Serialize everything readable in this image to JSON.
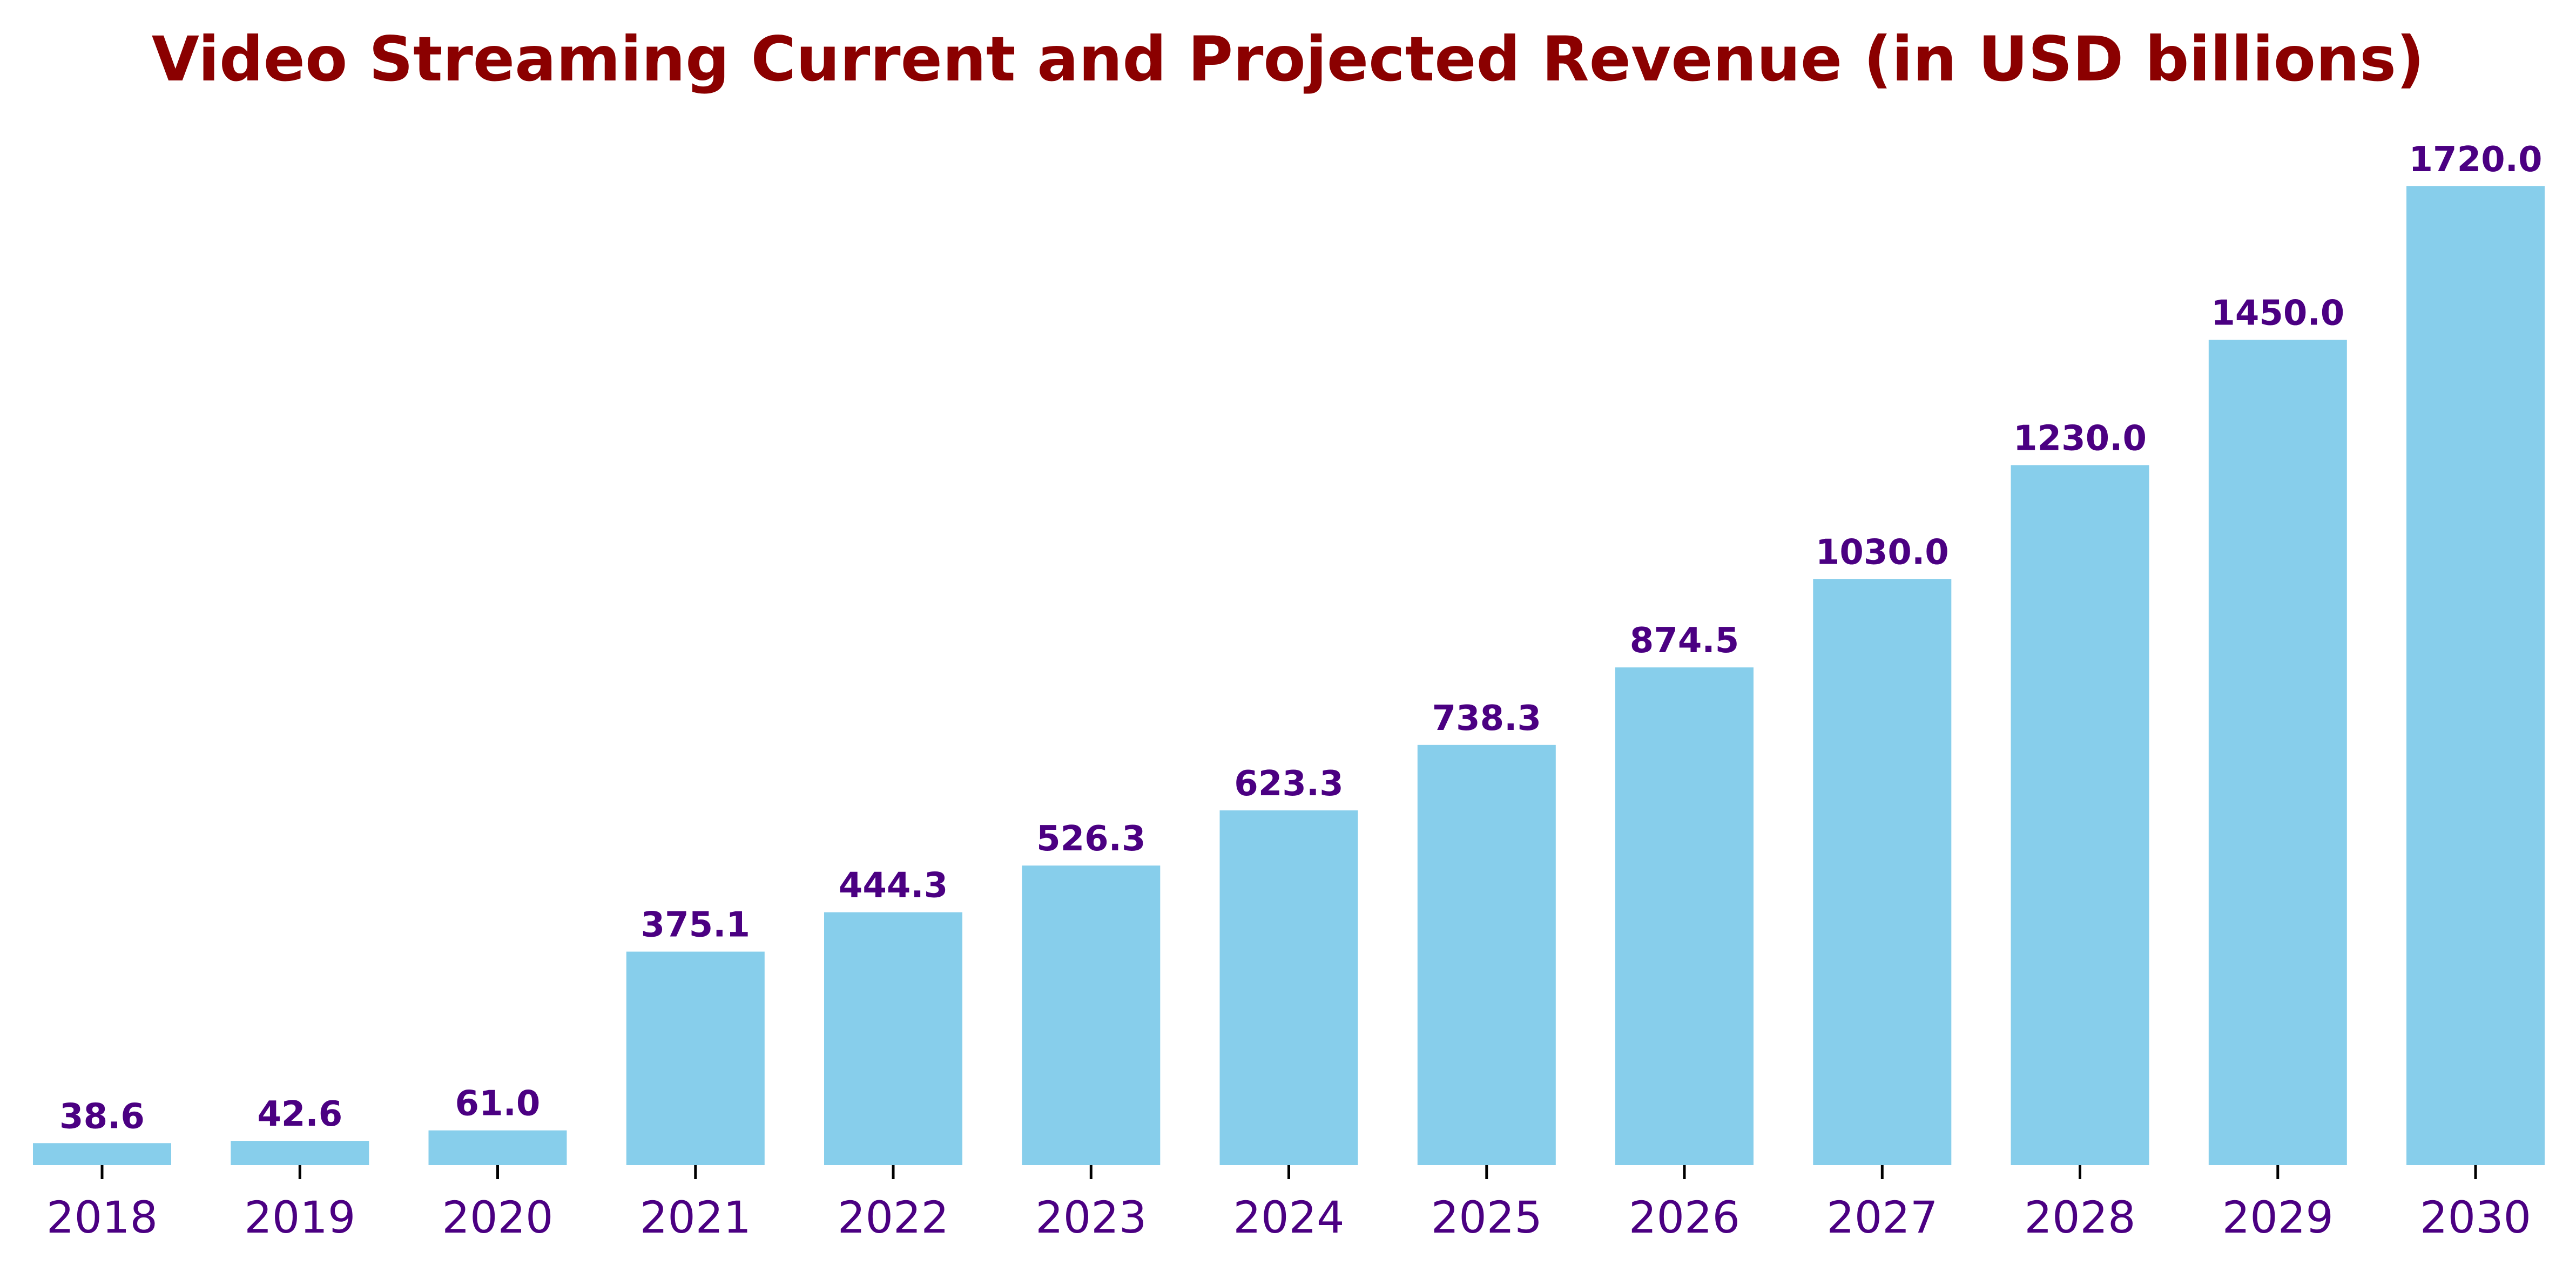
{
  "colors": {
    "title": "#8b0000",
    "bar": "#87ceeb",
    "label": "#4b0082",
    "tick": "#000000"
  },
  "chart_data": {
    "type": "bar",
    "title": "Video Streaming Current and Projected Revenue (in USD billions)",
    "xlabel": "",
    "ylabel": "",
    "categories": [
      "2018",
      "2019",
      "2020",
      "2021",
      "2022",
      "2023",
      "2024",
      "2025",
      "2026",
      "2027",
      "2028",
      "2029",
      "2030"
    ],
    "values": [
      38.6,
      42.6,
      61.0,
      375.1,
      444.3,
      526.3,
      623.3,
      738.3,
      874.5,
      1030.0,
      1230.0,
      1450.0,
      1720.0
    ],
    "value_labels": [
      "38.6",
      "42.6",
      "61.0",
      "375.1",
      "444.3",
      "526.3",
      "623.3",
      "738.3",
      "874.5",
      "1030.0",
      "1230.0",
      "1450.0",
      "1720.0"
    ],
    "ylim": [
      0,
      1720
    ],
    "grid": false,
    "legend": "none"
  }
}
